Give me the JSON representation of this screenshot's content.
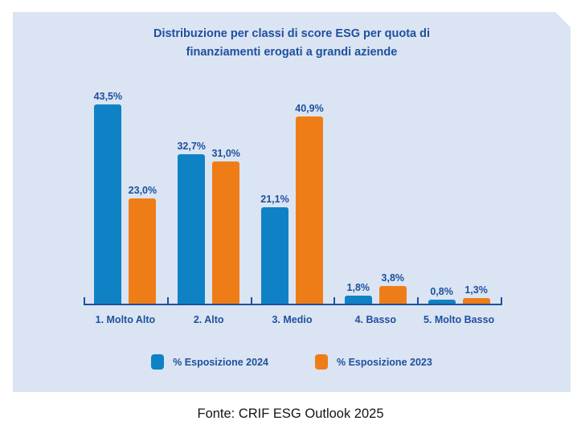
{
  "title": {
    "line1": "Distribuzione per classi di score ESG per quota di",
    "line2": "finanziamenti erogati a grandi aziende"
  },
  "chart_data": {
    "type": "bar",
    "title": "Distribuzione per classi di score ESG per quota di finanziamenti erogati a grandi aziende",
    "categories": [
      "1. Molto Alto",
      "2. Alto",
      "3. Medio",
      "4. Basso",
      "5. Molto Basso"
    ],
    "series": [
      {
        "name": "% Esposizione 2024",
        "color": "#0F82C5",
        "values": [
          43.5,
          32.7,
          21.1,
          1.8,
          0.8
        ]
      },
      {
        "name": "% Esposizione 2023",
        "color": "#EF7D17",
        "values": [
          23.0,
          31.0,
          40.9,
          3.8,
          1.3
        ]
      }
    ],
    "value_label_format": "percent-comma-1-decimal",
    "xlabel": "",
    "ylabel": "",
    "ylim": [
      0,
      45
    ],
    "grid": false,
    "y_axis_visible": false,
    "legend_position": "bottom"
  },
  "colors": {
    "panel_background": "#DAE4F3",
    "text_blue": "#1F509E",
    "axis": "#1F509E",
    "series_2024": "#0F82C5",
    "series_2023": "#EF7D17"
  },
  "footer": {
    "text": "Fonte: CRIF ESG Outlook 2025"
  }
}
